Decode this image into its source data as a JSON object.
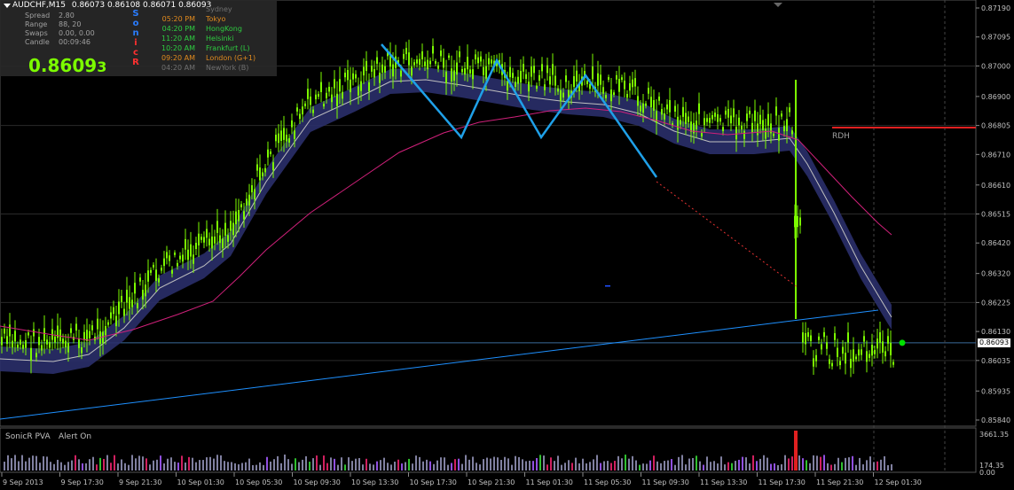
{
  "header": {
    "symbol": "AUDCHF,M15",
    "ohlc": "0.86073 0.86108 0.86071 0.86093"
  },
  "info_panel": {
    "rows": [
      {
        "label": "Spread",
        "value": "2.80"
      },
      {
        "label": "Range",
        "value": "88, 20"
      },
      {
        "label": "Swaps",
        "value": "0.00, 0.00"
      },
      {
        "label": "Candle",
        "value": "00:09:46"
      }
    ],
    "price_main": "0.8609",
    "price_last": "3",
    "sonic_letters": [
      "S",
      "o",
      "n",
      "i",
      "c",
      "R"
    ],
    "sonic_colors": [
      "#2a7dff",
      "#2a7dff",
      "#2a7dff",
      "#ff3030",
      "#ff3030",
      "#ff3030"
    ]
  },
  "sessions": [
    {
      "time": "",
      "name": "Sydney",
      "color": "#707070"
    },
    {
      "time": "05:20 PM",
      "name": "Tokyo",
      "color": "#e08a1e"
    },
    {
      "time": "04:20 PM",
      "name": "HongKong",
      "color": "#2ecc40"
    },
    {
      "time": "11:20 AM",
      "name": "Helsinki",
      "color": "#2ecc40"
    },
    {
      "time": "10:20 AM",
      "name": "Frankfurt  (L)",
      "color": "#2ecc40"
    },
    {
      "time": "09:20 AM",
      "name": "London  (G+1)",
      "color": "#e08a1e"
    },
    {
      "time": "04:20 AM",
      "name": "NewYork  (B)",
      "color": "#707070"
    }
  ],
  "price_axis": {
    "ticks": [
      "0.87190",
      "0.87095",
      "0.87000",
      "0.86900",
      "0.86805",
      "0.86710",
      "0.86610",
      "0.86515",
      "0.86420",
      "0.86320",
      "0.86225",
      "0.86130",
      "0.86035",
      "0.85935",
      "0.85840"
    ],
    "current_price": "0.86093"
  },
  "indicator": {
    "title": "SonicR PVA",
    "status": "Alert On",
    "axis_top": "3661.35",
    "axis_mid": "174.35",
    "axis_bottom": "0.00"
  },
  "time_axis": [
    "9 Sep 2013",
    "9 Sep 17:30",
    "9 Sep 21:30",
    "10 Sep 01:30",
    "10 Sep 05:30",
    "10 Sep 09:30",
    "10 Sep 13:30",
    "10 Sep 17:30",
    "10 Sep 21:30",
    "11 Sep 01:30",
    "11 Sep 05:30",
    "11 Sep 09:30",
    "11 Sep 13:30",
    "11 Sep 17:30",
    "11 Sep 21:30",
    "12 Sep 01:30"
  ],
  "level_label": "RDH",
  "colors": {
    "background": "#000000",
    "bull_candle": "#7cfc00",
    "ma_band": "#2a2f6a",
    "ma_line": "#c0c0c0",
    "slow_ma": "#d0207a",
    "zigzag": "#1fa0e8",
    "trendline": "#1e90ff",
    "rdh_line": "#e02020",
    "current_price_dot": "#00e000",
    "volume_climax": "#e02020",
    "volume_normal": "#8080a0"
  }
}
